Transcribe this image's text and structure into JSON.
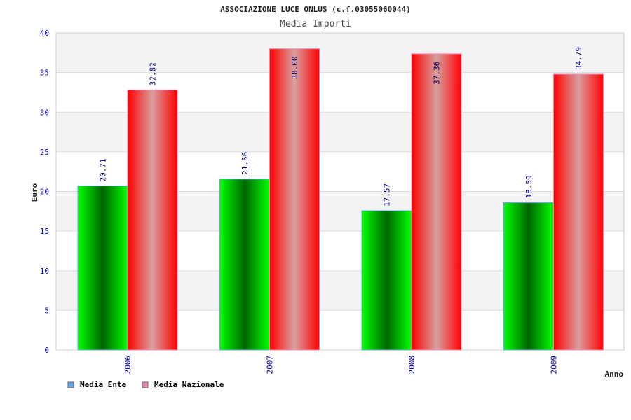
{
  "chart_data": {
    "type": "bar",
    "title": "ASSOCIAZIONE LUCE ONLUS (c.f.03055060044)",
    "subtitle": "Media Importi",
    "xlabel": "Anno",
    "ylabel": "Euro",
    "ylim": [
      0,
      40
    ],
    "yticks": [
      0,
      5,
      10,
      15,
      20,
      25,
      30,
      35,
      40
    ],
    "categories": [
      "2006",
      "2007",
      "2008",
      "2009"
    ],
    "series": [
      {
        "name": "Media Ente",
        "values": [
          20.71,
          21.56,
          17.57,
          18.59
        ],
        "labels": [
          "20.71",
          "21.56",
          "17.57",
          "18.59"
        ],
        "color": "#00cc00",
        "legend_color": "#66aaee"
      },
      {
        "name": "Media Nazionale",
        "values": [
          32.82,
          38.0,
          37.36,
          34.79
        ],
        "labels": [
          "32.82",
          "38.00",
          "37.36",
          "34.79"
        ],
        "color": "#ff0000",
        "legend_color": "#ee88bb"
      }
    ],
    "legend": "bottom-left",
    "grid": true
  }
}
